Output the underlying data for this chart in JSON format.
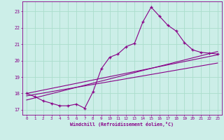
{
  "xlabel": "Windchill (Refroidissement éolien,°C)",
  "bg_color": "#cceee8",
  "line_color": "#880088",
  "grid_color": "#aaddcc",
  "xlim": [
    -0.5,
    23.5
  ],
  "ylim": [
    16.7,
    23.6
  ],
  "yticks": [
    17,
    18,
    19,
    20,
    21,
    22,
    23
  ],
  "xticks": [
    0,
    1,
    2,
    3,
    4,
    5,
    6,
    7,
    8,
    9,
    10,
    11,
    12,
    13,
    14,
    15,
    16,
    17,
    18,
    19,
    20,
    21,
    22,
    23
  ],
  "scatter_x": [
    0,
    1,
    2,
    3,
    4,
    5,
    6,
    7,
    8,
    9,
    10,
    11,
    12,
    13,
    14,
    15,
    16,
    17,
    18,
    19,
    20,
    21,
    22,
    23
  ],
  "scatter_y": [
    18.0,
    17.8,
    17.55,
    17.4,
    17.25,
    17.25,
    17.35,
    17.1,
    18.1,
    19.5,
    20.2,
    20.4,
    20.85,
    21.05,
    22.35,
    23.25,
    22.7,
    22.15,
    21.8,
    21.1,
    20.65,
    20.5,
    20.45,
    20.4
  ],
  "line1_x": [
    0,
    23
  ],
  "line1_y": [
    18.0,
    20.35
  ],
  "line2_x": [
    0,
    23
  ],
  "line2_y": [
    17.85,
    19.85
  ],
  "line3_x": [
    0,
    23
  ],
  "line3_y": [
    17.6,
    20.55
  ]
}
